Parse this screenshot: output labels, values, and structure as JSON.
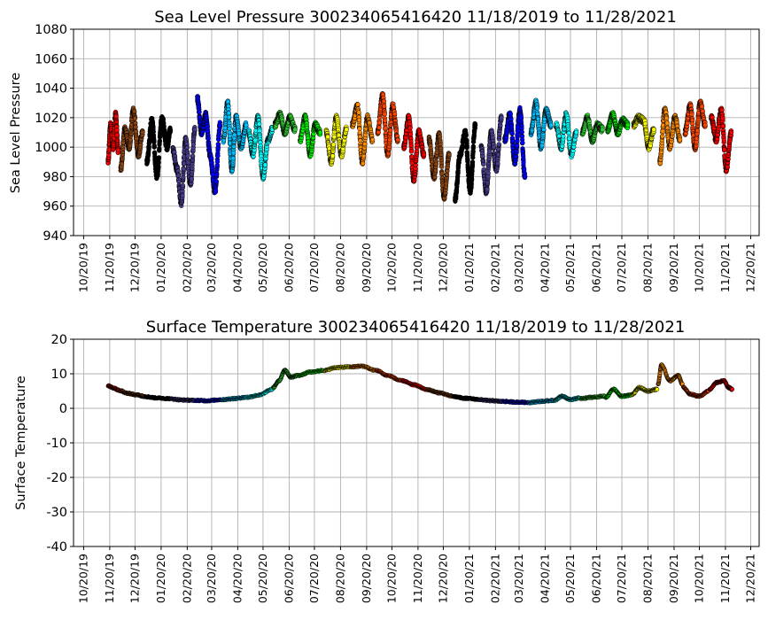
{
  "chart_data": [
    {
      "type": "scatter",
      "title": "Sea Level Pressure 300234065416420  11/18/2019 to 11/28/2021",
      "ylabel": "Sea Level Pressure",
      "xlabel": "",
      "ylim": [
        940,
        1080
      ],
      "yticks": [
        940,
        960,
        980,
        1000,
        1020,
        1040,
        1060,
        1080
      ],
      "x_range": [
        "2019-10-08",
        "2021-12-30"
      ],
      "x_ticks": [
        "10/20/19",
        "11/20/19",
        "12/20/19",
        "01/20/20",
        "02/20/20",
        "03/20/20",
        "04/20/20",
        "05/20/20",
        "06/20/20",
        "07/20/20",
        "08/20/20",
        "09/20/20",
        "10/20/20",
        "11/20/20",
        "12/20/20",
        "01/20/21",
        "02/20/21",
        "03/20/21",
        "04/20/21",
        "05/20/21",
        "06/20/21",
        "07/20/21",
        "08/20/21",
        "09/20/21",
        "10/20/21",
        "11/20/21",
        "12/20/21"
      ],
      "grid": true,
      "marker": "small filled circles with black edge, colored by month",
      "series": [
        {
          "color": "#ff0000",
          "x": [
            "2019-11-18",
            "2019-11-21",
            "2019-11-24",
            "2019-11-27",
            "2019-11-30"
          ],
          "y": [
            990,
            1015,
            1000,
            1022,
            998
          ]
        },
        {
          "color": "#8b4513",
          "x": [
            "2019-12-03",
            "2019-12-08",
            "2019-12-13",
            "2019-12-18",
            "2019-12-24",
            "2019-12-29"
          ],
          "y": [
            985,
            1012,
            1000,
            1025,
            995,
            1010
          ]
        },
        {
          "color": "#000000",
          "x": [
            "2020-01-03",
            "2020-01-09",
            "2020-01-15",
            "2020-01-21",
            "2020-01-27",
            "2020-01-31"
          ],
          "y": [
            990,
            1018,
            980,
            1020,
            1000,
            1012
          ]
        },
        {
          "color": "#483d8b",
          "x": [
            "2020-02-03",
            "2020-02-08",
            "2020-02-13",
            "2020-02-18",
            "2020-02-24",
            "2020-02-29"
          ],
          "y": [
            998,
            985,
            962,
            1005,
            975,
            1012
          ]
        },
        {
          "color": "#0000ff",
          "x": [
            "2020-03-03",
            "2020-03-08",
            "2020-03-13",
            "2020-03-18",
            "2020-03-24",
            "2020-03-30"
          ],
          "y": [
            1033,
            1010,
            1022,
            995,
            970,
            1015
          ]
        },
        {
          "color": "#00bfff",
          "x": [
            "2020-04-03",
            "2020-04-08",
            "2020-04-13",
            "2020-04-18",
            "2020-04-24",
            "2020-04-30"
          ],
          "y": [
            1005,
            1030,
            985,
            1020,
            1000,
            1015
          ]
        },
        {
          "color": "#00ffff",
          "x": [
            "2020-05-03",
            "2020-05-08",
            "2020-05-14",
            "2020-05-20",
            "2020-05-26",
            "2020-05-31"
          ],
          "y": [
            1010,
            995,
            1020,
            980,
            1005,
            1012
          ]
        },
        {
          "color": "#32cd32",
          "x": [
            "2020-06-03",
            "2020-06-09",
            "2020-06-15",
            "2020-06-21",
            "2020-06-27"
          ],
          "y": [
            1015,
            1022,
            1010,
            1020,
            1012
          ]
        },
        {
          "color": "#00ee00",
          "x": [
            "2020-07-03",
            "2020-07-09",
            "2020-07-15",
            "2020-07-21",
            "2020-07-27"
          ],
          "y": [
            1005,
            1020,
            995,
            1015,
            1010
          ]
        },
        {
          "color": "#ffff00",
          "x": [
            "2020-08-03",
            "2020-08-09",
            "2020-08-15",
            "2020-08-21",
            "2020-08-27"
          ],
          "y": [
            1010,
            990,
            1020,
            995,
            1012
          ]
        },
        {
          "color": "#ff8c00",
          "x": [
            "2020-09-03",
            "2020-09-09",
            "2020-09-15",
            "2020-09-21",
            "2020-09-27"
          ],
          "y": [
            1015,
            1028,
            990,
            1020,
            1005
          ]
        },
        {
          "color": "#ff4500",
          "x": [
            "2020-10-03",
            "2020-10-09",
            "2020-10-15",
            "2020-10-21",
            "2020-10-27"
          ],
          "y": [
            1010,
            1035,
            995,
            1028,
            1005
          ]
        },
        {
          "color": "#ff0000",
          "x": [
            "2020-11-03",
            "2020-11-09",
            "2020-11-15",
            "2020-11-21",
            "2020-11-27"
          ],
          "y": [
            1000,
            1020,
            978,
            1010,
            995
          ]
        },
        {
          "color": "#8b4513",
          "x": [
            "2020-12-03",
            "2020-12-09",
            "2020-12-15",
            "2020-12-21",
            "2020-12-27"
          ],
          "y": [
            1005,
            980,
            1008,
            966,
            995
          ]
        },
        {
          "color": "#000000",
          "x": [
            "2021-01-03",
            "2021-01-09",
            "2021-01-15",
            "2021-01-21",
            "2021-01-27"
          ],
          "y": [
            965,
            995,
            1010,
            970,
            1015
          ]
        },
        {
          "color": "#483d8b",
          "x": [
            "2021-02-03",
            "2021-02-09",
            "2021-02-15",
            "2021-02-21",
            "2021-02-27"
          ],
          "y": [
            1000,
            970,
            1010,
            985,
            1020
          ]
        },
        {
          "color": "#0000ff",
          "x": [
            "2021-03-03",
            "2021-03-09",
            "2021-03-15",
            "2021-03-21",
            "2021-03-27"
          ],
          "y": [
            1005,
            1022,
            990,
            1025,
            980
          ]
        },
        {
          "color": "#00bfff",
          "x": [
            "2021-04-03",
            "2021-04-09",
            "2021-04-15",
            "2021-04-21",
            "2021-04-27"
          ],
          "y": [
            1010,
            1030,
            1000,
            1025,
            1015
          ]
        },
        {
          "color": "#00ffff",
          "x": [
            "2021-05-03",
            "2021-05-09",
            "2021-05-15",
            "2021-05-21",
            "2021-05-27"
          ],
          "y": [
            1015,
            1000,
            1022,
            995,
            1010
          ]
        },
        {
          "color": "#32cd32",
          "x": [
            "2021-06-03",
            "2021-06-09",
            "2021-06-15",
            "2021-06-21",
            "2021-06-27"
          ],
          "y": [
            1010,
            1020,
            1005,
            1015,
            1012
          ]
        },
        {
          "color": "#00ee00",
          "x": [
            "2021-07-03",
            "2021-07-09",
            "2021-07-15",
            "2021-07-21",
            "2021-07-27"
          ],
          "y": [
            1012,
            1022,
            1010,
            1018,
            1015
          ]
        },
        {
          "color": "#ffff00",
          "x": [
            "2021-08-03",
            "2021-08-09",
            "2021-08-15",
            "2021-08-21",
            "2021-08-27"
          ],
          "y": [
            1015,
            1020,
            1018,
            1000,
            1012
          ]
        },
        {
          "color": "#ff8c00",
          "x": [
            "2021-09-03",
            "2021-09-09",
            "2021-09-15",
            "2021-09-21",
            "2021-09-27"
          ],
          "y": [
            990,
            1025,
            1000,
            1020,
            1005
          ]
        },
        {
          "color": "#ff4500",
          "x": [
            "2021-10-03",
            "2021-10-09",
            "2021-10-15",
            "2021-10-21",
            "2021-10-27"
          ],
          "y": [
            1010,
            1028,
            1000,
            1030,
            1015
          ]
        },
        {
          "color": "#ff0000",
          "x": [
            "2021-11-03",
            "2021-11-09",
            "2021-11-15",
            "2021-11-21",
            "2021-11-27"
          ],
          "y": [
            1020,
            1005,
            1025,
            985,
            1010
          ]
        }
      ]
    },
    {
      "type": "scatter",
      "title": "Surface Temperature 300234065416420  11/18/2019 to 11/28/2021",
      "ylabel": "Surface Temperature",
      "xlabel": "",
      "ylim": [
        -40,
        20
      ],
      "yticks": [
        -40,
        -30,
        -20,
        -10,
        0,
        10,
        20
      ],
      "x_range": [
        "2019-10-08",
        "2021-12-30"
      ],
      "x_ticks": [
        "10/20/19",
        "11/20/19",
        "12/20/19",
        "01/20/20",
        "02/20/20",
        "03/20/20",
        "04/20/20",
        "05/20/20",
        "06/20/20",
        "07/20/20",
        "08/20/20",
        "09/20/20",
        "10/20/20",
        "11/20/20",
        "12/20/20",
        "01/20/21",
        "02/20/21",
        "03/20/21",
        "04/20/21",
        "05/20/21",
        "06/20/21",
        "07/20/21",
        "08/20/21",
        "09/20/21",
        "10/20/21",
        "11/20/21",
        "12/20/21"
      ],
      "grid": true,
      "marker": "small filled circles with black edge, colored by month",
      "series": [
        {
          "color": "#ff0000",
          "x": [
            "2019-11-18",
            "2019-11-25",
            "2019-12-01"
          ],
          "y": [
            6.5,
            5.8,
            5.2
          ]
        },
        {
          "color": "#8b4513",
          "x": [
            "2019-12-02",
            "2019-12-12",
            "2019-12-22",
            "2019-12-31"
          ],
          "y": [
            5.1,
            4.3,
            3.9,
            3.5
          ]
        },
        {
          "color": "#000000",
          "x": [
            "2020-01-01",
            "2020-01-15",
            "2020-01-31"
          ],
          "y": [
            3.4,
            3.0,
            2.8
          ]
        },
        {
          "color": "#483d8b",
          "x": [
            "2020-02-01",
            "2020-02-15",
            "2020-02-29"
          ],
          "y": [
            2.7,
            2.4,
            2.3
          ]
        },
        {
          "color": "#0000ff",
          "x": [
            "2020-03-01",
            "2020-03-15",
            "2020-03-31"
          ],
          "y": [
            2.3,
            2.2,
            2.5
          ]
        },
        {
          "color": "#00bfff",
          "x": [
            "2020-04-01",
            "2020-04-15",
            "2020-04-30"
          ],
          "y": [
            2.5,
            2.8,
            3.2
          ]
        },
        {
          "color": "#00ffff",
          "x": [
            "2020-05-01",
            "2020-05-15",
            "2020-05-31"
          ],
          "y": [
            3.2,
            3.8,
            5.5
          ]
        },
        {
          "color": "#32cd32",
          "x": [
            "2020-06-01",
            "2020-06-08",
            "2020-06-15",
            "2020-06-22",
            "2020-06-30"
          ],
          "y": [
            6,
            8,
            11,
            9,
            9.5
          ]
        },
        {
          "color": "#00ee00",
          "x": [
            "2020-07-01",
            "2020-07-15",
            "2020-07-31"
          ],
          "y": [
            9.5,
            10.5,
            11
          ]
        },
        {
          "color": "#ffff00",
          "x": [
            "2020-08-01",
            "2020-08-15",
            "2020-08-31"
          ],
          "y": [
            11,
            11.8,
            12
          ]
        },
        {
          "color": "#ff8c00",
          "x": [
            "2020-09-01",
            "2020-09-15",
            "2020-09-30"
          ],
          "y": [
            12,
            12.2,
            11
          ]
        },
        {
          "color": "#ff4500",
          "x": [
            "2020-10-01",
            "2020-10-15",
            "2020-10-31"
          ],
          "y": [
            11,
            9.5,
            8
          ]
        },
        {
          "color": "#ff0000",
          "x": [
            "2020-11-01",
            "2020-11-15",
            "2020-11-30"
          ],
          "y": [
            8,
            6.8,
            5.5
          ]
        },
        {
          "color": "#8b4513",
          "x": [
            "2020-12-01",
            "2020-12-15",
            "2020-12-31"
          ],
          "y": [
            5.4,
            4.5,
            3.5
          ]
        },
        {
          "color": "#000000",
          "x": [
            "2021-01-01",
            "2021-01-15",
            "2021-01-31"
          ],
          "y": [
            3.4,
            2.9,
            2.6
          ]
        },
        {
          "color": "#483d8b",
          "x": [
            "2021-02-01",
            "2021-02-15",
            "2021-02-28"
          ],
          "y": [
            2.5,
            2.2,
            2.0
          ]
        },
        {
          "color": "#0000ff",
          "x": [
            "2021-03-01",
            "2021-03-15",
            "2021-03-31"
          ],
          "y": [
            2.0,
            1.8,
            1.7
          ]
        },
        {
          "color": "#00bfff",
          "x": [
            "2021-04-01",
            "2021-04-15",
            "2021-04-30"
          ],
          "y": [
            1.7,
            2.0,
            2.3
          ]
        },
        {
          "color": "#00ffff",
          "x": [
            "2021-05-01",
            "2021-05-10",
            "2021-05-20",
            "2021-05-31"
          ],
          "y": [
            2.3,
            3.5,
            2.5,
            3.0
          ]
        },
        {
          "color": "#32cd32",
          "x": [
            "2021-06-01",
            "2021-06-15",
            "2021-06-30"
          ],
          "y": [
            2.8,
            3.2,
            3.5
          ]
        },
        {
          "color": "#00ee00",
          "x": [
            "2021-07-01",
            "2021-07-10",
            "2021-07-20",
            "2021-07-31"
          ],
          "y": [
            3.2,
            5.5,
            3.5,
            3.8
          ]
        },
        {
          "color": "#ffff00",
          "x": [
            "2021-08-01",
            "2021-08-10",
            "2021-08-20",
            "2021-08-31"
          ],
          "y": [
            4,
            6,
            5,
            5.5
          ]
        },
        {
          "color": "#ff8c00",
          "x": [
            "2021-09-01",
            "2021-09-05",
            "2021-09-15",
            "2021-09-25",
            "2021-09-30"
          ],
          "y": [
            7,
            12.5,
            8,
            9.5,
            7
          ]
        },
        {
          "color": "#ff4500",
          "x": [
            "2021-10-01",
            "2021-10-10",
            "2021-10-20",
            "2021-10-31"
          ],
          "y": [
            6,
            4,
            3.5,
            5
          ]
        },
        {
          "color": "#ff0000",
          "x": [
            "2021-11-01",
            "2021-11-10",
            "2021-11-18",
            "2021-11-24",
            "2021-11-28"
          ],
          "y": [
            5.5,
            7.5,
            8,
            6,
            5.5
          ]
        }
      ]
    }
  ]
}
